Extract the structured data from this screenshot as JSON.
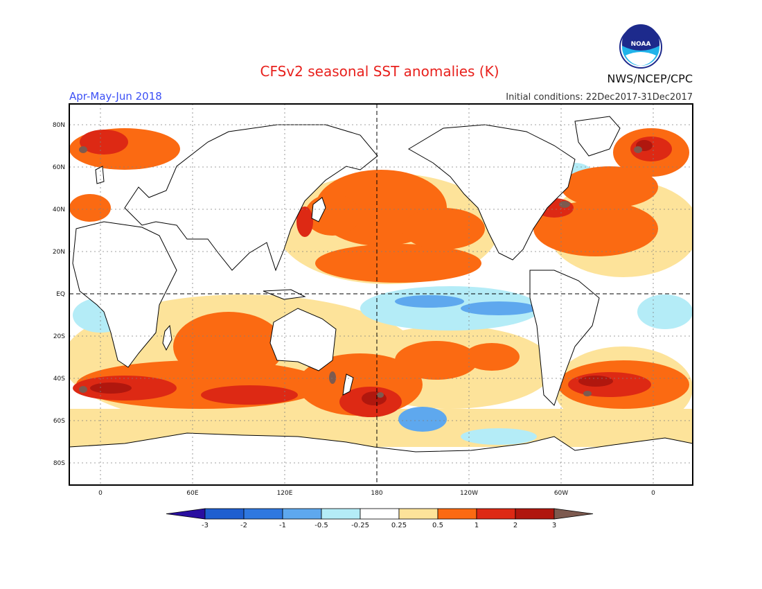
{
  "header": {
    "title": "CFSv2 seasonal SST anomalies (K)",
    "agency": "NWS/NCEP/CPC",
    "period": "Apr-May-Jun 2018",
    "initial_conditions": "Initial conditions: 22Dec2017-31Dec2017",
    "logo_text": "NOAA"
  },
  "colors": {
    "title": "#e8211d",
    "period": "#3b4ff5",
    "land": "#ffffff",
    "neutral_ocean": "#ffffff"
  },
  "map": {
    "projection": "equirectangular",
    "gridlines": "dotted",
    "reference_lines": [
      "EQ",
      "180"
    ],
    "lat_labels": [
      "80N",
      "60N",
      "40N",
      "20N",
      "EQ",
      "20S",
      "40S",
      "60S",
      "80S"
    ],
    "lon_labels": [
      "0",
      "60E",
      "120E",
      "180",
      "120W",
      "60W",
      "0"
    ]
  },
  "legend": {
    "unit": "K",
    "tick_labels": [
      "-3",
      "-2",
      "-1",
      "-0.5",
      "-0.25",
      "0.25",
      "0.5",
      "1",
      "2",
      "3"
    ],
    "bins": [
      {
        "label": "< -3",
        "color": "#2a0fa0"
      },
      {
        "label": "-3 to -2",
        "color": "#1f5fd0"
      },
      {
        "label": "-2 to -1",
        "color": "#2f78e0"
      },
      {
        "label": "-1 to -0.5",
        "color": "#5ea8ee"
      },
      {
        "label": "-0.5 to -0.25",
        "color": "#b4ecf7"
      },
      {
        "label": "-0.25 to 0.25",
        "color": "#ffffff"
      },
      {
        "label": "0.25 to 0.5",
        "color": "#fde39a"
      },
      {
        "label": "0.5 to 1",
        "color": "#fb6a12"
      },
      {
        "label": "1 to 2",
        "color": "#dd2914"
      },
      {
        "label": "2 to 3",
        "color": "#b0170e"
      },
      {
        "label": "> 3",
        "color": "#7d5a4f"
      }
    ]
  }
}
